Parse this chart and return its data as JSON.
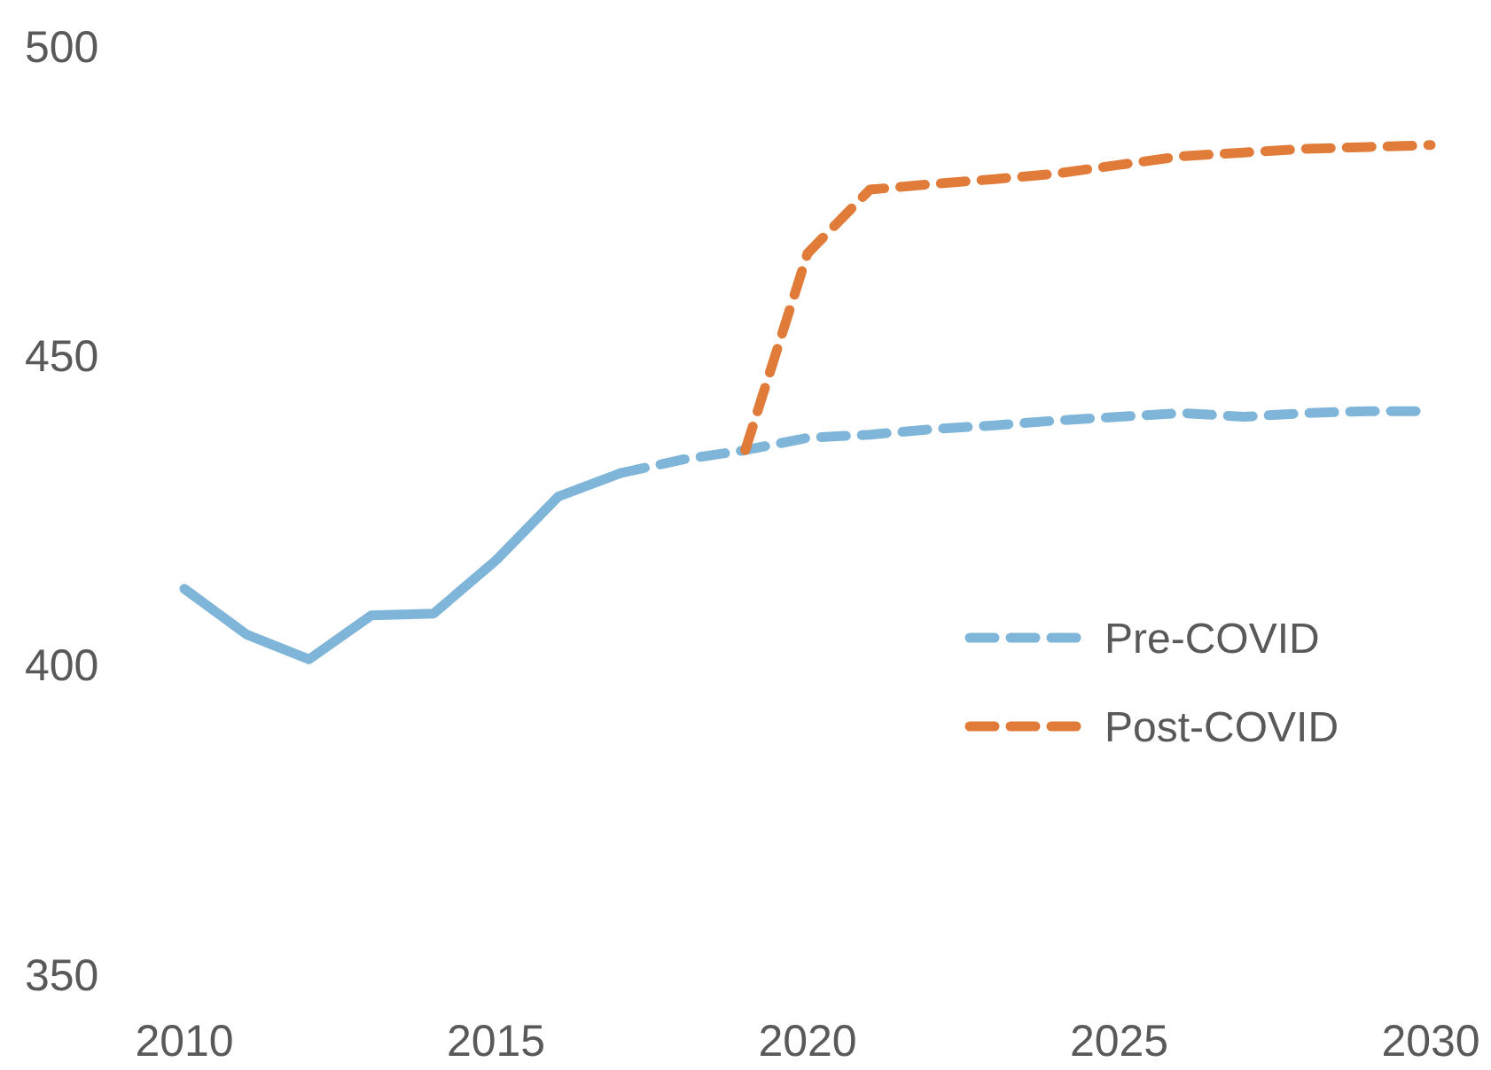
{
  "chart_data": {
    "type": "line",
    "series": [
      {
        "color": "#7eb5d8",
        "line_style": "solid",
        "x": [
          2010,
          2011,
          2012,
          2013,
          2014,
          2015,
          2016,
          2017
        ],
        "values": [
          412.3,
          404.9,
          400.9,
          408.0,
          408.3,
          416.9,
          427.2,
          431.0
        ]
      },
      {
        "name": "Pre-COVID",
        "color": "#7eb5d8",
        "line_style": "dashed",
        "x": [
          2017,
          2018,
          2019,
          2020,
          2021,
          2022,
          2023,
          2024,
          2025,
          2026,
          2027,
          2028,
          2029,
          2030
        ],
        "values": [
          431.0,
          433.2,
          434.7,
          436.7,
          437.2,
          438.1,
          438.7,
          439.5,
          440.1,
          440.7,
          440.1,
          440.7,
          441.0,
          441.0
        ]
      },
      {
        "name": "Post-COVID",
        "color": "#e07b39",
        "line_style": "dashed",
        "x": [
          2019,
          2020,
          2021,
          2022,
          2023,
          2024,
          2025,
          2026,
          2027,
          2028,
          2029,
          2030
        ],
        "values": [
          434.7,
          466.5,
          476.8,
          477.7,
          478.5,
          479.4,
          480.8,
          482.2,
          482.8,
          483.4,
          483.7,
          484.0
        ]
      }
    ],
    "xlim": [
      2010,
      2030
    ],
    "xticks": [
      2010,
      2015,
      2020,
      2025,
      2030
    ],
    "ylim": [
      350,
      500
    ],
    "yticks": [
      350,
      400,
      450,
      500
    ],
    "grid": false,
    "legend": "right",
    "marker": "none"
  }
}
